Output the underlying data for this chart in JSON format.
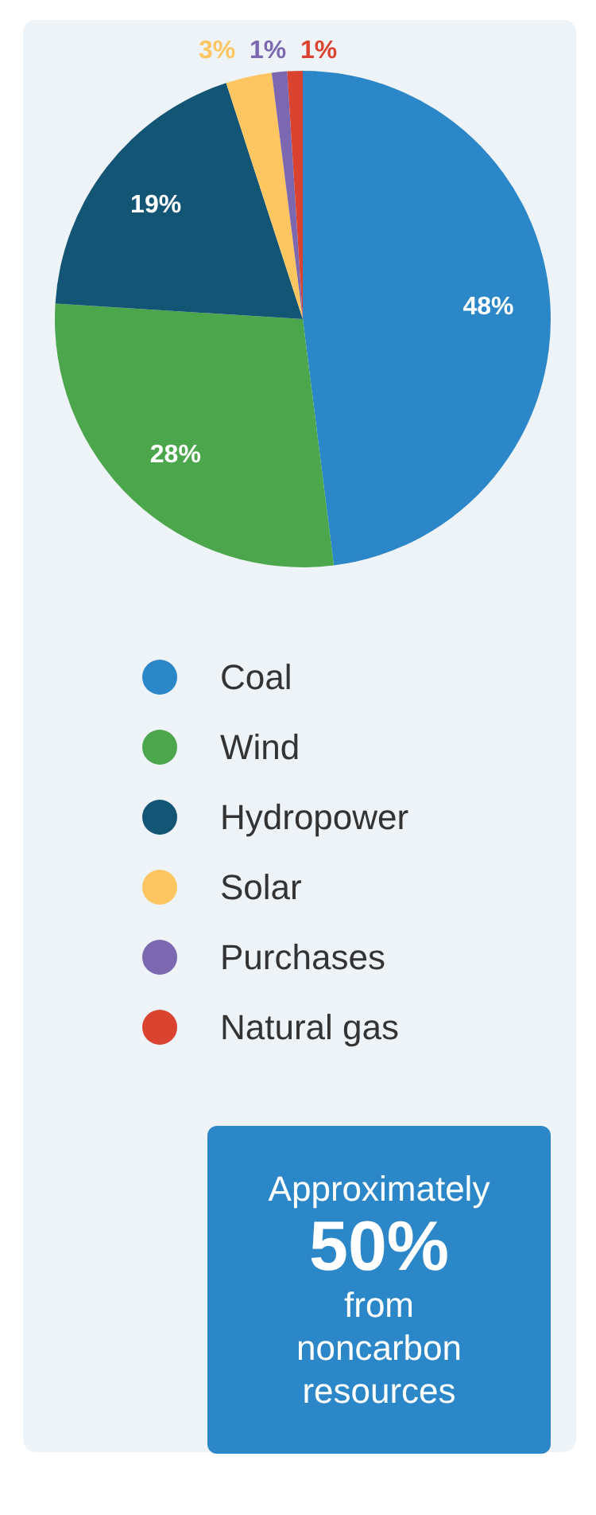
{
  "chart_data": {
    "type": "pie",
    "categories": [
      "Coal",
      "Wind",
      "Hydropower",
      "Solar",
      "Purchases",
      "Natural gas"
    ],
    "values": [
      48,
      28,
      19,
      3,
      1,
      1
    ],
    "colors": [
      "#2b87c8",
      "#4ca64c",
      "#135574",
      "#fdc661",
      "#7b68b0",
      "#d9432f"
    ],
    "value_labels": [
      "48%",
      "28%",
      "19%",
      "3%",
      "1%",
      "1%"
    ],
    "legend": "bottom",
    "annotations": [
      "Approximately",
      "50%",
      "from noncarbon resources"
    ]
  }
}
